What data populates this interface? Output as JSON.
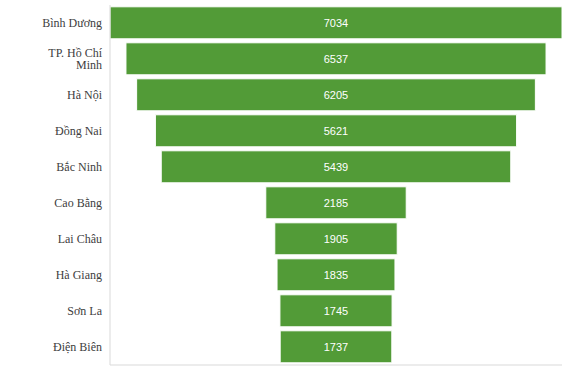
{
  "chart_data": {
    "type": "funnel",
    "orientation": "horizontal",
    "categories": [
      "Bình Dương",
      "TP. Hồ Chí Minh",
      "Hà Nội",
      "Đồng Nai",
      "Bắc Ninh",
      "Cao Bằng",
      "Lai Châu",
      "Hà Giang",
      "Sơn La",
      "Điện Biên"
    ],
    "values": [
      7034,
      6537,
      6205,
      5621,
      5439,
      2185,
      1905,
      1835,
      1745,
      1737
    ],
    "color": "#529b37",
    "data_labels": true,
    "tick_labels": "y",
    "grid": false
  }
}
